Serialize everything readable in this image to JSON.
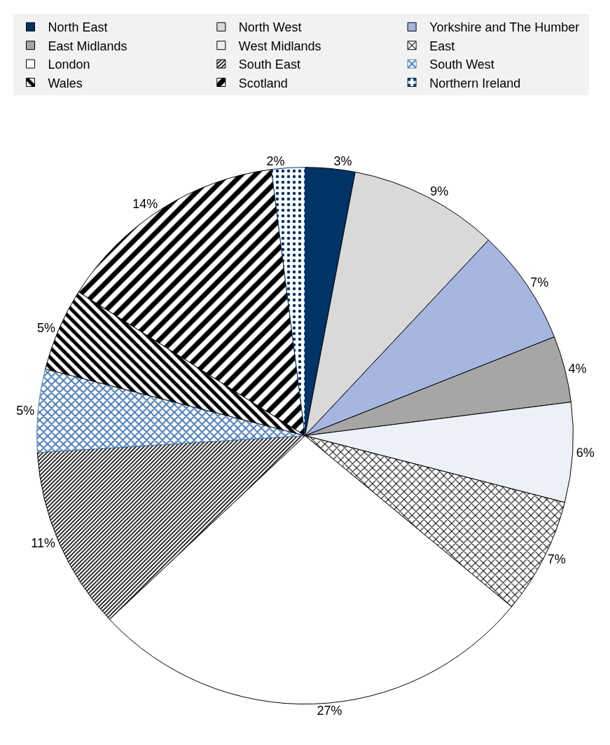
{
  "chart_data": {
    "type": "pie",
    "categories": [
      "North East",
      "North West",
      "Yorkshire and The Humber",
      "East Midlands",
      "West Midlands",
      "East",
      "London",
      "South East",
      "South West",
      "Wales",
      "Scotland",
      "Northern Ireland"
    ],
    "values": [
      3,
      9,
      7,
      4,
      6,
      7,
      27,
      11,
      5,
      5,
      14,
      2
    ],
    "value_labels": [
      "3%",
      "9%",
      "7%",
      "4%",
      "6%",
      "7%",
      "27%",
      "11%",
      "5%",
      "5%",
      "14%",
      "2%"
    ],
    "colors": [
      "#003366",
      "#d9d9d9",
      "#a6b6e0",
      "#a6a6a6",
      "#eef0f8",
      "#000000",
      "#ffffff",
      "#000000",
      "#4a7ebb",
      "#000000",
      "#000000",
      "#003366"
    ],
    "legend": "top"
  }
}
